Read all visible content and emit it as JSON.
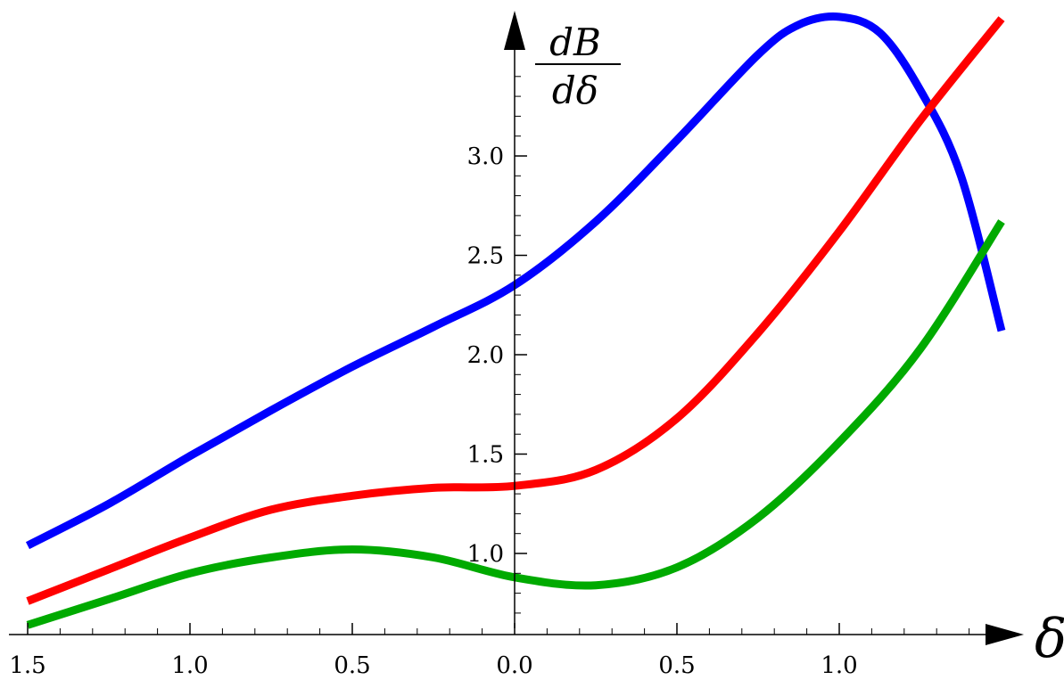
{
  "chart_data": {
    "type": "line",
    "title": "",
    "xlabel": "δ",
    "ylabel": {
      "numerator": "dB",
      "denominator": "dδ"
    },
    "xlim": [
      -1.55,
      1.55
    ],
    "ylim": [
      0.6,
      3.7
    ],
    "x_ticks": [
      {
        "value": -1.5,
        "label": "1.5"
      },
      {
        "value": -1.0,
        "label": "1.0"
      },
      {
        "value": -0.5,
        "label": "0.5"
      },
      {
        "value": 0.0,
        "label": "0.0"
      },
      {
        "value": 0.5,
        "label": "0.5"
      },
      {
        "value": 1.0,
        "label": "1.0"
      }
    ],
    "y_ticks": [
      {
        "value": 1.0,
        "label": "1.0"
      },
      {
        "value": 1.5,
        "label": "1.5"
      },
      {
        "value": 2.0,
        "label": "2.0"
      },
      {
        "value": 2.5,
        "label": "2.5"
      },
      {
        "value": 3.0,
        "label": "3.0"
      }
    ],
    "grid": false,
    "series": [
      {
        "color": "#0000ff",
        "x": [
          -1.5,
          -1.25,
          -1.0,
          -0.75,
          -0.5,
          -0.25,
          0.0,
          0.25,
          0.5,
          0.75,
          0.875,
          1.0,
          1.125,
          1.25,
          1.375,
          1.5
        ],
        "y": [
          1.04,
          1.25,
          1.49,
          1.72,
          1.94,
          2.14,
          2.35,
          2.67,
          3.08,
          3.51,
          3.66,
          3.7,
          3.62,
          3.33,
          2.9,
          2.12
        ]
      },
      {
        "color": "#ff0000",
        "x": [
          -1.5,
          -1.25,
          -1.0,
          -0.75,
          -0.5,
          -0.25,
          0.0,
          0.25,
          0.5,
          0.75,
          1.0,
          1.25,
          1.5
        ],
        "y": [
          0.76,
          0.92,
          1.08,
          1.22,
          1.29,
          1.33,
          1.34,
          1.42,
          1.68,
          2.11,
          2.62,
          3.18,
          3.69
        ]
      },
      {
        "color": "#00aa00",
        "x": [
          -1.5,
          -1.25,
          -1.0,
          -0.75,
          -0.5,
          -0.25,
          0.0,
          0.25,
          0.5,
          0.75,
          1.0,
          1.25,
          1.5
        ],
        "y": [
          0.64,
          0.77,
          0.9,
          0.98,
          1.02,
          0.98,
          0.88,
          0.84,
          0.93,
          1.18,
          1.56,
          2.03,
          2.67
        ]
      }
    ]
  }
}
